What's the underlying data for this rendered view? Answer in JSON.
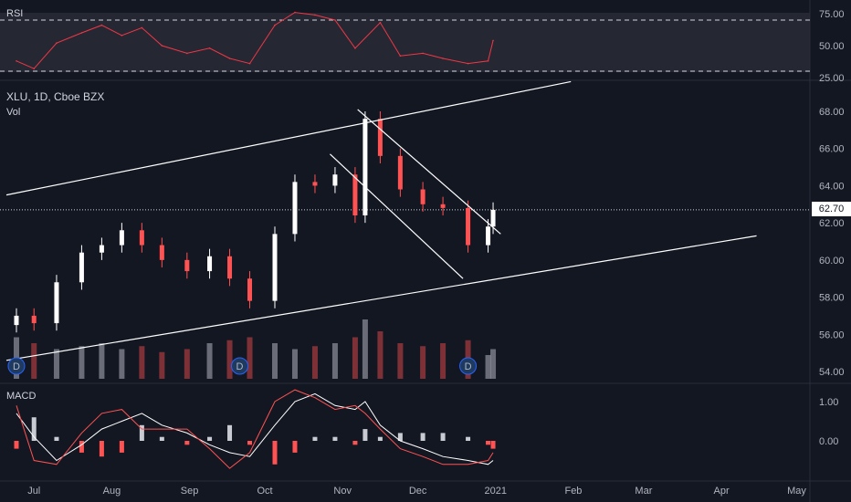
{
  "chart_data": [
    {
      "type": "line",
      "panel": "rsi",
      "title": "RSI",
      "y_ticks": [
        "75.00",
        "50.00",
        "25.00"
      ],
      "ylim": [
        25,
        80
      ],
      "levels": [
        70,
        30
      ],
      "line_color": "#f23645",
      "x": [
        "2020-06-24",
        "2020-07-01",
        "2020-07-10",
        "2020-07-20",
        "2020-07-28",
        "2020-08-05",
        "2020-08-13",
        "2020-08-21",
        "2020-08-31",
        "2020-09-09",
        "2020-09-17",
        "2020-09-25",
        "2020-10-05",
        "2020-10-13",
        "2020-10-21",
        "2020-10-29",
        "2020-11-06",
        "2020-11-16",
        "2020-11-24",
        "2020-12-03",
        "2020-12-11",
        "2020-12-21",
        "2020-12-29",
        "2020-12-31"
      ],
      "values": [
        38,
        32,
        52,
        60,
        66,
        58,
        64,
        50,
        44,
        48,
        40,
        36,
        66,
        76,
        74,
        70,
        48,
        68,
        42,
        44,
        40,
        36,
        38,
        54
      ]
    },
    {
      "type": "candlestick",
      "panel": "price",
      "title": "XLU, 1D, Cboe BZX",
      "subtitle": "Vol",
      "y_ticks": [
        "68.00",
        "66.00",
        "64.00",
        "62.00",
        "60.00",
        "58.00",
        "56.00",
        "54.00"
      ],
      "ylim": [
        53.5,
        69.5
      ],
      "last_price": "62.70",
      "up_color": "#ffffff",
      "down_color": "#ff5252",
      "markers": [
        "D",
        "D",
        "D"
      ],
      "x": [
        "2020-06-24",
        "2020-07-01",
        "2020-07-10",
        "2020-07-20",
        "2020-07-28",
        "2020-08-05",
        "2020-08-13",
        "2020-08-21",
        "2020-08-31",
        "2020-09-09",
        "2020-09-17",
        "2020-09-25",
        "2020-10-05",
        "2020-10-13",
        "2020-10-21",
        "2020-10-29",
        "2020-11-06",
        "2020-11-10",
        "2020-11-16",
        "2020-11-24",
        "2020-12-03",
        "2020-12-11",
        "2020-12-21",
        "2020-12-29",
        "2020-12-31"
      ],
      "close": [
        57.0,
        56.6,
        58.8,
        60.4,
        60.8,
        61.6,
        60.8,
        60.0,
        59.4,
        60.2,
        59.0,
        57.8,
        61.4,
        64.2,
        64.0,
        64.6,
        62.4,
        67.6,
        65.6,
        63.8,
        63.0,
        62.8,
        60.8,
        61.8,
        62.7
      ],
      "volume": [
        0.7,
        0.6,
        0.5,
        0.55,
        0.6,
        0.5,
        0.55,
        0.45,
        0.5,
        0.6,
        0.65,
        0.7,
        0.6,
        0.5,
        0.55,
        0.6,
        0.7,
        1.0,
        0.8,
        0.6,
        0.55,
        0.6,
        0.65,
        0.4,
        0.5
      ]
    },
    {
      "type": "line",
      "panel": "macd",
      "title": "MACD",
      "y_ticks": [
        "1.00",
        "0.00"
      ],
      "ylim": [
        -1.0,
        1.5
      ],
      "series": [
        {
          "color": "#ffffff",
          "values": [
            0.7,
            0.1,
            -0.5,
            -0.1,
            0.3,
            0.5,
            0.7,
            0.4,
            0.2,
            -0.1,
            -0.3,
            -0.4,
            0.4,
            1.0,
            1.2,
            0.9,
            0.8,
            1.0,
            0.4,
            0.0,
            -0.2,
            -0.4,
            -0.5,
            -0.6,
            -0.5
          ]
        },
        {
          "color": "#ff5252",
          "values": [
            0.9,
            -0.5,
            -0.6,
            0.2,
            0.7,
            0.8,
            0.3,
            0.3,
            0.3,
            -0.2,
            -0.7,
            -0.3,
            1.0,
            1.3,
            1.1,
            0.8,
            0.9,
            0.7,
            0.3,
            -0.2,
            -0.4,
            -0.6,
            -0.6,
            -0.5,
            -0.3
          ]
        }
      ]
    }
  ],
  "x_labels": [
    "Jul",
    "Aug",
    "Sep",
    "Oct",
    "Nov",
    "Dec",
    "2021",
    "Feb",
    "Mar",
    "Apr",
    "May"
  ]
}
